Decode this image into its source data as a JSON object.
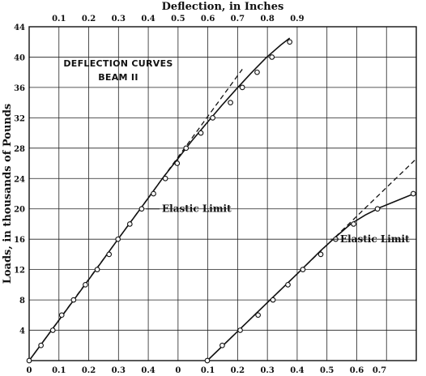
{
  "chart_data": {
    "type": "line",
    "title": "DEFLECTION CURVES",
    "subtitle": "BEAM II",
    "xlabel_top": "Deflection, in Inches",
    "ylabel": "Loads, in thousands of Pounds",
    "ylim": [
      0,
      44
    ],
    "y_ticks": [
      "4",
      "8",
      "12",
      "16",
      "20",
      "24",
      "28",
      "32",
      "36",
      "40",
      "44"
    ],
    "x_ticks_top": [
      "0.1",
      "0.2",
      "0.3",
      "0.4",
      "0.5",
      "0.6",
      "0.7",
      "0.8",
      "0.9"
    ],
    "x_ticks_bottom": [
      "0",
      "0.1",
      "0.2",
      "0.3",
      "0.4",
      "0",
      "0.1",
      "0.2",
      "0.3",
      "0.4",
      "0.5",
      "0.6",
      "0.7"
    ],
    "grid": true,
    "annotations": [
      "Elastic Limit",
      "Elastic Limit"
    ],
    "series": [
      {
        "xlim": [
          0,
          0.9
        ],
        "tangent": {
          "x": [
            0.0,
            0.72
          ],
          "y": [
            0.0,
            38.4
          ]
        },
        "curve": {
          "x": [
            0.0,
            0.1,
            0.2,
            0.3,
            0.4,
            0.45,
            0.5,
            0.55,
            0.6,
            0.65,
            0.7,
            0.75,
            0.8,
            0.85,
            0.88
          ],
          "y": [
            0.0,
            5.3,
            10.6,
            16.0,
            21.3,
            24.0,
            26.5,
            29.0,
            31.3,
            33.6,
            35.8,
            37.9,
            39.9,
            41.6,
            42.5
          ]
        },
        "points": {
          "x": [
            0.0,
            0.04,
            0.08,
            0.11,
            0.15,
            0.19,
            0.23,
            0.27,
            0.3,
            0.34,
            0.38,
            0.42,
            0.46,
            0.5,
            0.53,
            0.58,
            0.62,
            0.68,
            0.72,
            0.77,
            0.82,
            0.88
          ],
          "y": [
            0.0,
            2.0,
            4.0,
            6.0,
            8.0,
            10.0,
            12.0,
            14.0,
            16.0,
            18.0,
            20.0,
            22.0,
            24.0,
            26.0,
            28.0,
            30.0,
            32.0,
            34.0,
            36.0,
            38.0,
            40.0,
            42.0
          ]
        },
        "elastic_limit": {
          "x": 0.375,
          "y": 20.0
        }
      },
      {
        "xlim": [
          0,
          0.7
        ],
        "tangent": {
          "x": [
            0.0,
            0.7
          ],
          "y": [
            0.0,
            26.6
          ]
        },
        "curve": {
          "x": [
            0.0,
            0.1,
            0.2,
            0.3,
            0.38,
            0.43,
            0.48,
            0.53,
            0.58,
            0.63,
            0.68,
            0.7
          ],
          "y": [
            0.0,
            3.8,
            7.6,
            11.4,
            14.5,
            16.3,
            18.0,
            19.2,
            20.2,
            21.0,
            21.8,
            22.0
          ]
        },
        "points": {
          "x": [
            0.0,
            0.05,
            0.11,
            0.17,
            0.22,
            0.27,
            0.32,
            0.38,
            0.43,
            0.49,
            0.57,
            0.69
          ],
          "y": [
            0.0,
            2.0,
            4.0,
            6.0,
            8.0,
            10.0,
            12.0,
            14.0,
            16.0,
            18.0,
            20.0,
            22.0
          ]
        },
        "elastic_limit": {
          "x": 0.43,
          "y": 16.0
        }
      }
    ]
  }
}
